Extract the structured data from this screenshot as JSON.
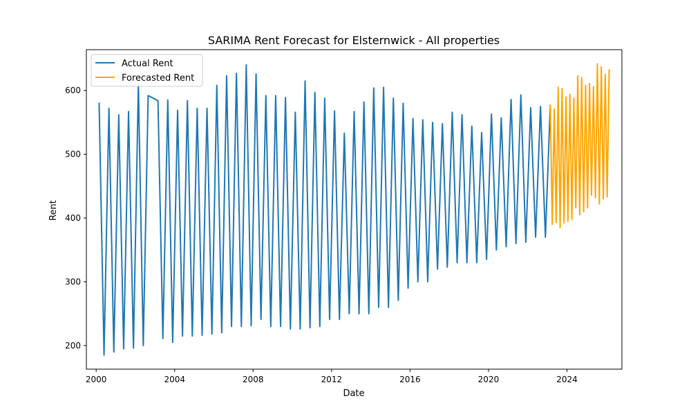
{
  "chart_data": {
    "type": "line",
    "title": "SARIMA Rent Forecast for Elsternwick - All properties",
    "xlabel": "Date",
    "ylabel": "Rent",
    "xlim": [
      1999.5,
      2026.8
    ],
    "ylim": [
      163,
      664
    ],
    "x_ticks": [
      2000,
      2004,
      2008,
      2012,
      2016,
      2020,
      2024
    ],
    "y_ticks": [
      200,
      300,
      400,
      500,
      600
    ],
    "grid": false,
    "legend": {
      "position": "top-left"
    },
    "series": [
      {
        "name": "Actual Rent",
        "color": "#1f77b4",
        "x": [
          2000.15,
          2000.4,
          2000.65,
          2000.9,
          2001.15,
          2001.4,
          2001.65,
          2001.9,
          2002.15,
          2002.4,
          2002.65,
          2003.15,
          2003.4,
          2003.65,
          2003.9,
          2004.15,
          2004.4,
          2004.65,
          2004.9,
          2005.15,
          2005.4,
          2005.65,
          2005.9,
          2006.15,
          2006.4,
          2006.65,
          2006.9,
          2007.15,
          2007.4,
          2007.65,
          2007.9,
          2008.15,
          2008.4,
          2008.65,
          2008.9,
          2009.15,
          2009.4,
          2009.65,
          2009.9,
          2010.15,
          2010.4,
          2010.65,
          2010.9,
          2011.15,
          2011.4,
          2011.65,
          2011.9,
          2012.15,
          2012.4,
          2012.65,
          2012.9,
          2013.15,
          2013.4,
          2013.65,
          2013.9,
          2014.15,
          2014.4,
          2014.65,
          2014.9,
          2015.15,
          2015.4,
          2015.65,
          2015.9,
          2016.15,
          2016.4,
          2016.65,
          2016.9,
          2017.15,
          2017.4,
          2017.65,
          2017.9,
          2018.15,
          2018.4,
          2018.65,
          2018.9,
          2019.15,
          2019.4,
          2019.65,
          2019.9,
          2020.15,
          2020.4,
          2020.65,
          2020.9,
          2021.15,
          2021.4,
          2021.65,
          2021.9,
          2022.15,
          2022.4,
          2022.65,
          2022.9,
          2023.15
        ],
        "y": [
          581,
          185,
          572,
          190,
          562,
          195,
          567,
          196,
          610,
          200,
          592,
          584,
          211,
          585,
          205,
          569,
          215,
          584,
          215,
          572,
          216,
          572,
          218,
          608,
          220,
          623,
          230,
          627,
          230,
          640,
          231,
          626,
          241,
          592,
          230,
          592,
          230,
          589,
          226,
          566,
          226,
          615,
          228,
          597,
          230,
          588,
          241,
          568,
          241,
          533,
          250,
          567,
          250,
          582,
          250,
          604,
          260,
          605,
          260,
          588,
          271,
          580,
          290,
          556,
          300,
          554,
          300,
          550,
          320,
          548,
          323,
          566,
          330,
          562,
          330,
          544,
          330,
          534,
          335,
          563,
          350,
          557,
          355,
          586,
          360,
          593,
          362,
          573,
          370,
          575,
          370,
          578
        ]
      },
      {
        "name": "Forecasted Rent",
        "color": "#ffa500",
        "x": [
          2023.15,
          2023.25,
          2023.35,
          2023.45,
          2023.55,
          2023.65,
          2023.75,
          2023.85,
          2023.95,
          2024.05,
          2024.15,
          2024.25,
          2024.35,
          2024.45,
          2024.55,
          2024.65,
          2024.75,
          2024.85,
          2024.95,
          2025.05,
          2025.15,
          2025.25,
          2025.35,
          2025.45,
          2025.55,
          2025.65,
          2025.75,
          2025.85,
          2025.95,
          2026.05,
          2026.15
        ],
        "y": [
          578,
          390,
          571,
          393,
          605,
          385,
          603,
          392,
          590,
          395,
          594,
          398,
          588,
          416,
          623,
          405,
          620,
          410,
          608,
          416,
          611,
          436,
          606,
          432,
          642,
          422,
          637,
          430,
          625,
          433,
          633
        ]
      }
    ]
  }
}
